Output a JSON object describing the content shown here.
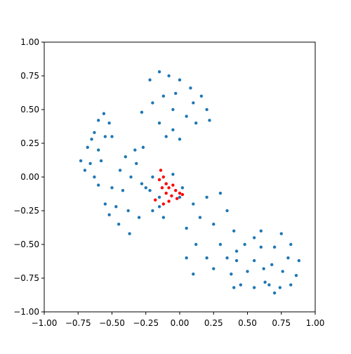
{
  "chart_data": {
    "type": "scatter",
    "xlim": [
      -1,
      1
    ],
    "ylim": [
      -1,
      1
    ],
    "xticks": [
      {
        "value": -1,
        "label": "−1.00"
      },
      {
        "value": -0.75,
        "label": "−0.75"
      },
      {
        "value": -0.5,
        "label": "−0.50"
      },
      {
        "value": -0.25,
        "label": "−0.25"
      },
      {
        "value": 0,
        "label": "0.00"
      },
      0.25,
      {
        "value": 0.5,
        "label": "0.50"
      },
      0.75,
      {
        "value": 1,
        "label": "1.00"
      }
    ],
    "yticks": [
      {
        "value": -1,
        "label": "−1.00"
      },
      {
        "value": -0.75,
        "label": "−0.75"
      },
      {
        "value": -0.5,
        "label": "−0.50"
      },
      {
        "value": -0.25,
        "label": "−0.25"
      },
      {
        "value": 0,
        "label": "0.00"
      },
      0.25,
      {
        "value": 0.5,
        "label": "0.50"
      },
      0.75,
      {
        "value": 1,
        "label": "1.00"
      }
    ],
    "series": [
      {
        "color": "#1f77b4",
        "x": [
          -0.22,
          -0.15,
          -0.08,
          0.0,
          0.08,
          0.16,
          0.2,
          0.22,
          -0.28,
          -0.2,
          -0.12,
          -0.05,
          0.05,
          0.12,
          -0.15,
          -0.05,
          0.0,
          -0.1,
          0.1,
          -0.03,
          -0.56,
          -0.52,
          -0.6,
          -0.55,
          -0.63,
          -0.68,
          -0.6,
          -0.73,
          -0.66,
          -0.58,
          -0.7,
          -0.63,
          -0.6,
          -0.5,
          -0.65,
          -0.27,
          -0.33,
          -0.4,
          -0.32,
          -0.44,
          -0.36,
          -0.5,
          -0.42,
          -0.55,
          -0.47,
          -0.38,
          -0.45,
          -0.37,
          -0.3,
          -0.28,
          -0.52,
          -0.2,
          -0.22,
          -0.15,
          -0.1,
          0.02,
          -0.2,
          -0.12,
          -0.15,
          0.0,
          -0.05,
          -0.25,
          0.1,
          0.2,
          0.3,
          0.35,
          0.15,
          0.05,
          0.25,
          0.4,
          0.12,
          0.3,
          0.05,
          0.2,
          0.35,
          0.1,
          0.25,
          0.42,
          0.6,
          0.55,
          0.48,
          0.6,
          0.42,
          0.55,
          0.38,
          0.5,
          0.62,
          0.45,
          0.55,
          0.4,
          0.63,
          0.75,
          0.82,
          0.7,
          0.8,
          0.88,
          0.68,
          0.76,
          0.86,
          0.66,
          0.74,
          0.82,
          0.7
        ],
        "values": [
          0.72,
          0.78,
          0.75,
          0.72,
          0.66,
          0.6,
          0.5,
          0.42,
          0.48,
          0.55,
          0.6,
          0.5,
          0.45,
          0.4,
          0.4,
          0.35,
          0.28,
          0.3,
          0.55,
          0.62,
          0.47,
          0.4,
          0.42,
          0.3,
          0.33,
          0.22,
          0.2,
          0.12,
          0.1,
          0.12,
          0.05,
          0.0,
          -0.06,
          0.3,
          0.28,
          0.22,
          0.2,
          0.15,
          0.1,
          0.05,
          0.0,
          -0.08,
          -0.1,
          -0.2,
          -0.22,
          -0.25,
          -0.35,
          -0.42,
          -0.3,
          -0.05,
          -0.28,
          0.0,
          -0.1,
          -0.15,
          -0.05,
          -0.08,
          -0.25,
          -0.3,
          -0.22,
          -0.15,
          0.02,
          -0.08,
          -0.2,
          -0.15,
          -0.12,
          -0.25,
          -0.3,
          -0.38,
          -0.35,
          -0.4,
          -0.5,
          -0.5,
          -0.6,
          -0.6,
          -0.6,
          -0.72,
          -0.68,
          -0.55,
          -0.4,
          -0.45,
          -0.5,
          -0.52,
          -0.62,
          -0.62,
          -0.72,
          -0.7,
          -0.68,
          -0.8,
          -0.82,
          -0.82,
          -0.78,
          -0.42,
          -0.5,
          -0.52,
          -0.6,
          -0.62,
          -0.65,
          -0.7,
          -0.73,
          -0.8,
          -0.82,
          -0.8,
          -0.86
        ]
      },
      {
        "color": "#ff0000",
        "x": [
          -0.14,
          -0.12,
          -0.15,
          -0.1,
          -0.13,
          -0.08,
          -0.05,
          -0.03,
          0.0,
          -0.06,
          -0.02,
          0.02,
          -0.08,
          -0.12,
          -0.18,
          -0.1
        ],
        "values": [
          0.05,
          0.0,
          -0.02,
          -0.05,
          -0.08,
          -0.08,
          -0.06,
          -0.1,
          -0.12,
          -0.14,
          -0.16,
          -0.13,
          -0.18,
          -0.2,
          -0.17,
          -0.12
        ]
      }
    ]
  }
}
